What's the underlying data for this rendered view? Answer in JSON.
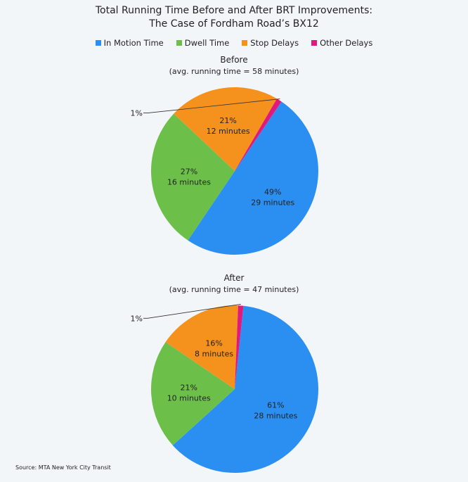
{
  "header": {
    "title_line1": "Total Running Time Before and After BRT Improvements:",
    "title_line2": "The Case of Fordham Road’s BX12"
  },
  "legend": [
    {
      "label": "In Motion Time",
      "color": "#2b8ff2"
    },
    {
      "label": "Dwell Time",
      "color": "#6cc04a"
    },
    {
      "label": "Stop Delays",
      "color": "#f5921e"
    },
    {
      "label": "Other Delays",
      "color": "#e0197d"
    }
  ],
  "chart_data": [
    {
      "type": "pie",
      "title": "Before",
      "subtitle": "(avg. running time = 58 minutes)",
      "slices": [
        {
          "name": "In Motion Time",
          "percent": 49,
          "minutes": 29,
          "label_pct": "49%",
          "label_min": "29 minutes",
          "color": "#2b8ff2"
        },
        {
          "name": "Dwell Time",
          "percent": 27,
          "minutes": 16,
          "label_pct": "27%",
          "label_min": "16 minutes",
          "color": "#6cc04a"
        },
        {
          "name": "Stop Delays",
          "percent": 21,
          "minutes": 12,
          "label_pct": "21%",
          "label_min": "12 minutes",
          "color": "#f5921e"
        },
        {
          "name": "Other Delays",
          "percent": 1,
          "label_pct": "1%",
          "color": "#e0197d"
        }
      ]
    },
    {
      "type": "pie",
      "title": "After",
      "subtitle": "(avg. running time = 47 minutes)",
      "slices": [
        {
          "name": "In Motion Time",
          "percent": 61,
          "minutes": 28,
          "label_pct": "61%",
          "label_min": "28 minutes",
          "color": "#2b8ff2"
        },
        {
          "name": "Dwell Time",
          "percent": 21,
          "minutes": 10,
          "label_pct": "21%",
          "label_min": "10 minutes",
          "color": "#6cc04a"
        },
        {
          "name": "Stop Delays",
          "percent": 16,
          "minutes": 8,
          "label_pct": "16%",
          "label_min": "8 minutes",
          "color": "#f5921e"
        },
        {
          "name": "Other Delays",
          "percent": 1,
          "label_pct": "1%",
          "color": "#e0197d"
        }
      ]
    }
  ],
  "footer": {
    "source": "Source: MTA New York City Transit"
  }
}
